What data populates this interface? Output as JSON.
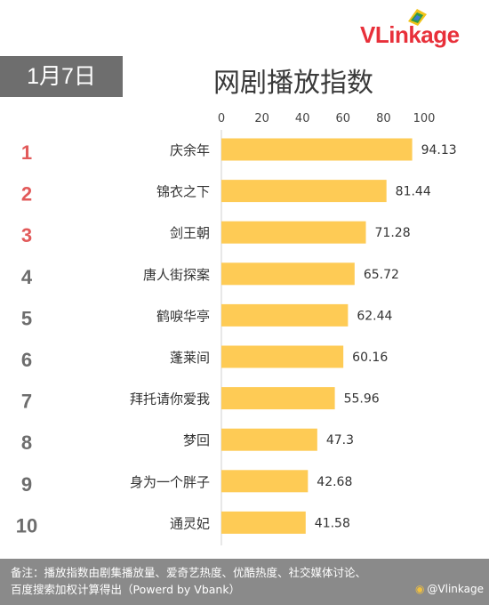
{
  "logo": {
    "part1": "VLink",
    "part2": "age"
  },
  "date_tag": "1月7日",
  "title": "网剧播放指数",
  "footer": {
    "note_line1": "备注：播放指数由剧集播放量、爱奇艺热度、优酷热度、社交媒体讨论、",
    "note_line2": "百度搜索加权计算得出（Powerd by Vbank）",
    "watermark": "@Vlinkage"
  },
  "colors": {
    "bar": "#fecb55",
    "rank_top": "#e25a5a",
    "rank_other": "#6d6d6d",
    "footer_bg": "#8a8a8a",
    "date_bg": "#6e6e6e"
  },
  "chart_data": {
    "type": "bar",
    "orientation": "horizontal",
    "title": "网剧播放指数",
    "xlim": [
      0,
      100
    ],
    "xticks": [
      "0",
      "20",
      "40",
      "60",
      "80",
      "100"
    ],
    "grid": false,
    "ranks": [
      "1",
      "2",
      "3",
      "4",
      "5",
      "6",
      "7",
      "8",
      "9",
      "10"
    ],
    "categories": [
      "庆余年",
      "锦衣之下",
      "剑王朝",
      "唐人街探案",
      "鹤唳华亭",
      "蓬莱间",
      "拜托请你爱我",
      "梦回",
      "身为一个胖子",
      "通灵妃"
    ],
    "values": [
      94.13,
      81.44,
      71.28,
      65.72,
      62.44,
      60.16,
      55.96,
      47.3,
      42.68,
      41.58
    ],
    "value_labels": [
      "94.13",
      "81.44",
      "71.28",
      "65.72",
      "62.44",
      "60.16",
      "55.96",
      "47.3",
      "42.68",
      "41.58"
    ]
  }
}
